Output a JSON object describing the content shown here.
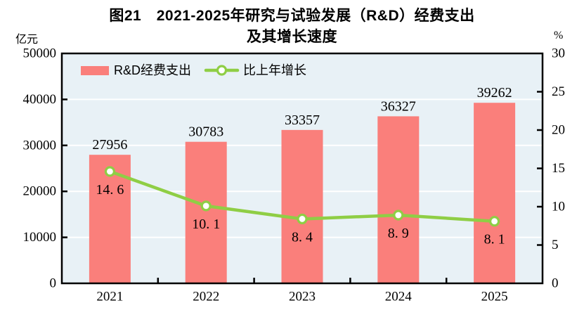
{
  "title": {
    "line1": "图21　2021-2025年研究与试验发展（R&D）经费支出",
    "line2": "及其增长速度"
  },
  "chart_data": {
    "type": "bar+line",
    "title": "图21 2021-2025年研究与试验发展（R&D）经费支出及其增长速度",
    "categories": [
      "2021",
      "2022",
      "2023",
      "2024",
      "2025"
    ],
    "series": [
      {
        "name": "R&D经费支出",
        "type": "bar",
        "axis": "left",
        "color": "#FA7F7B",
        "values": [
          27956,
          30783,
          33357,
          36327,
          39262
        ],
        "labels": [
          "27956",
          "30783",
          "33357",
          "36327",
          "39262"
        ]
      },
      {
        "name": "比上年增长",
        "type": "line",
        "axis": "right",
        "color": "#8FCE45",
        "marker_fill": "#FFFFFF",
        "values": [
          14.6,
          10.1,
          8.4,
          8.9,
          8.1
        ],
        "labels": [
          "14. 6",
          "10. 1",
          "8. 4",
          "8. 9",
          "8. 1"
        ]
      }
    ],
    "left_axis": {
      "unit": "亿元",
      "min": 0,
      "max": 50000,
      "step": 10000,
      "tick_labels": [
        "0",
        "10000",
        "20000",
        "30000",
        "40000",
        "50000"
      ]
    },
    "right_axis": {
      "unit": "%",
      "min": 0,
      "max": 30,
      "step": 5,
      "tick_labels": [
        "0",
        "5",
        "10",
        "15",
        "20",
        "25",
        "30"
      ]
    },
    "plot_background": "#E8F1F6",
    "grid": "on",
    "grid_color": "#FFFFFF",
    "axis_color": "#000000",
    "legend_position": "top-left-inside"
  }
}
